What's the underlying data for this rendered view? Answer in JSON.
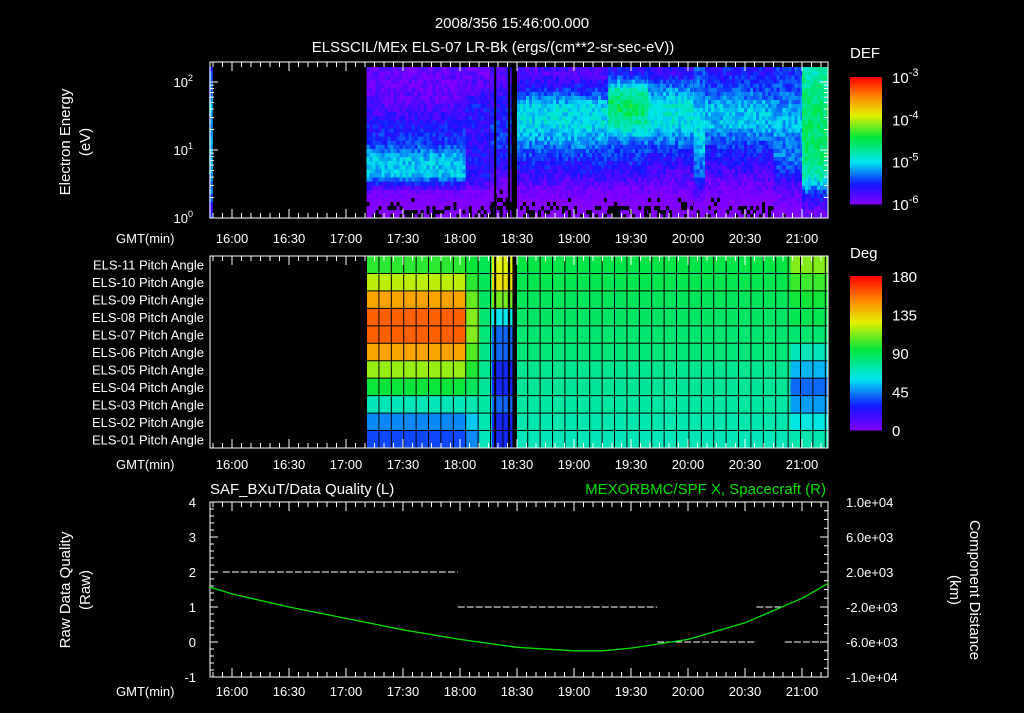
{
  "header": {
    "timestamp": "2008/356 15:46:00.000",
    "title": "ELSSCIL/MEx ELS-07 LR-Bk  (ergs/(cm**2-sr-sec-eV))"
  },
  "chart_data": [
    {
      "type": "heatmap",
      "name": "electron-spectrogram",
      "ylabel": "Electron Energy",
      "ylabel_units": "(eV)",
      "xlabel": "GMT(min)",
      "yscale": "log",
      "ylim": [
        1,
        145
      ],
      "ytick_labels": [
        {
          "base": "10",
          "exp": "0",
          "value": 1
        },
        {
          "base": "10",
          "exp": "1",
          "value": 10
        },
        {
          "base": "10",
          "exp": "2",
          "value": 100
        }
      ],
      "x_range_hours": [
        15.8,
        21.23
      ],
      "xtick_labels": [
        "16:00",
        "16:30",
        "17:00",
        "17:30",
        "18:00",
        "18:30",
        "19:00",
        "19:30",
        "20:00",
        "20:30",
        "21:00"
      ],
      "colorbar": {
        "title": "DEF",
        "scale": "log",
        "range_log10": [
          -6,
          -3
        ],
        "labels": [
          {
            "base": "10",
            "exp": "-3"
          },
          {
            "base": "10",
            "exp": "-4"
          },
          {
            "base": "10",
            "exp": "-5"
          },
          {
            "base": "10",
            "exp": "-6"
          }
        ]
      },
      "energy_bins_log10": [
        0.1,
        0.35,
        0.6,
        0.85,
        1.1,
        1.35,
        1.6,
        1.85,
        2.1
      ],
      "segments": [
        {
          "start": 15.8,
          "end": 15.83,
          "log10_def": [
            -5.6,
            -5.3,
            -5.2,
            -5.2,
            -5.2,
            -5.2,
            -5.2,
            -5.3,
            -5.5
          ]
        },
        {
          "start": 17.18,
          "end": 18.05,
          "log10_def": [
            -6.2,
            -6.0,
            -5.1,
            -5.1,
            -5.5,
            -5.6,
            -5.8,
            -5.9,
            -5.9
          ]
        },
        {
          "start": 18.05,
          "end": 18.27,
          "log10_def": [
            -6.2,
            -6.0,
            -5.6,
            -5.6,
            -5.7,
            -5.6,
            -5.6,
            -5.8,
            -5.9
          ]
        },
        {
          "start": 18.27,
          "end": 18.45,
          "log10_def": [
            -6.3,
            -6.1,
            -5.8,
            -5.6,
            -5.5,
            -5.5,
            -5.6,
            -5.7,
            -5.8
          ]
        },
        {
          "start": 18.5,
          "end": 19.3,
          "log10_def": [
            -6.2,
            -6.0,
            -5.7,
            -5.5,
            -5.2,
            -5.0,
            -5.0,
            -5.5,
            -5.8
          ]
        },
        {
          "start": 19.3,
          "end": 19.65,
          "log10_def": [
            -6.2,
            -6.0,
            -5.7,
            -5.5,
            -5.3,
            -4.8,
            -4.5,
            -4.8,
            -5.6
          ]
        },
        {
          "start": 19.65,
          "end": 20.05,
          "log10_def": [
            -6.2,
            -6.0,
            -5.8,
            -5.6,
            -5.3,
            -5.0,
            -4.9,
            -5.2,
            -5.7
          ]
        },
        {
          "start": 20.05,
          "end": 20.15,
          "log10_def": [
            -6.1,
            -5.8,
            -5.4,
            -5.2,
            -5.0,
            -5.0,
            -5.1,
            -5.3,
            -5.4
          ]
        },
        {
          "start": 20.15,
          "end": 20.75,
          "log10_def": [
            -6.2,
            -6.0,
            -5.8,
            -5.6,
            -5.4,
            -5.1,
            -5.1,
            -5.4,
            -5.6
          ]
        },
        {
          "start": 20.75,
          "end": 21.0,
          "log10_def": [
            -6.1,
            -5.9,
            -5.6,
            -5.3,
            -5.3,
            -5.1,
            -5.2,
            -5.4,
            -5.5
          ]
        },
        {
          "start": 21.0,
          "end": 21.23,
          "log10_def": [
            -5.9,
            -5.4,
            -4.8,
            -4.6,
            -4.6,
            -4.6,
            -4.6,
            -4.7,
            -4.8
          ]
        }
      ],
      "data_gaps": [
        [
          18.3,
          18.31
        ],
        [
          18.42,
          18.44
        ],
        [
          18.46,
          18.5
        ]
      ]
    },
    {
      "type": "heatmap",
      "name": "pitch-angle",
      "xlabel": "GMT(min)",
      "row_labels": [
        "ELS-11 Pitch Angle",
        "ELS-10 Pitch Angle",
        "ELS-09 Pitch Angle",
        "ELS-08 Pitch Angle",
        "ELS-07 Pitch Angle",
        "ELS-06 Pitch Angle",
        "ELS-05 Pitch Angle",
        "ELS-04 Pitch Angle",
        "ELS-03 Pitch Angle",
        "ELS-02 Pitch Angle",
        "ELS-01 Pitch Angle"
      ],
      "x_range_hours": [
        15.8,
        21.23
      ],
      "xtick_labels": [
        "16:00",
        "16:30",
        "17:00",
        "17:30",
        "18:00",
        "18:30",
        "19:00",
        "19:30",
        "20:00",
        "20:30",
        "21:00"
      ],
      "colorbar": {
        "title": "Deg",
        "range": [
          0,
          180
        ],
        "labels": [
          "180",
          "135",
          "90",
          "45",
          "0"
        ]
      },
      "segments": [
        {
          "start": 17.18,
          "end": 18.05,
          "deg": [
            100,
            120,
            145,
            160,
            160,
            145,
            115,
            95,
            70,
            45,
            35
          ]
        },
        {
          "start": 18.05,
          "end": 18.17,
          "deg": [
            95,
            100,
            108,
            112,
            112,
            105,
            98,
            88,
            72,
            55,
            45
          ]
        },
        {
          "start": 18.17,
          "end": 18.28,
          "deg": [
            90,
            88,
            86,
            84,
            82,
            80,
            78,
            76,
            74,
            72,
            70
          ]
        },
        {
          "start": 18.28,
          "end": 18.5,
          "deg": [
            125,
            130,
            110,
            60,
            40,
            40,
            30,
            30,
            40,
            30,
            30
          ]
        },
        {
          "start": 18.5,
          "end": 20.9,
          "deg": [
            92,
            90,
            88,
            86,
            84,
            82,
            78,
            76,
            74,
            72,
            70
          ]
        },
        {
          "start": 20.9,
          "end": 21.23,
          "deg": [
            112,
            102,
            96,
            90,
            84,
            70,
            52,
            40,
            48,
            62,
            72
          ]
        }
      ],
      "data_gaps": [
        [
          18.3,
          18.31
        ],
        [
          18.42,
          18.44
        ],
        [
          18.46,
          18.5
        ]
      ]
    },
    {
      "type": "line",
      "name": "quality-and-position",
      "left_title": "SAF_BXuT/Data Quality (L)",
      "right_title": "MEXORBMC/SPF X, Spacecraft (R)",
      "ylabel_left": "Raw Data Quality",
      "ylabel_left_units": "(Raw)",
      "ylabel_right": "Component Distance",
      "ylabel_right_units": "(km)",
      "xlabel": "GMT(min)",
      "ylim_left": [
        -1,
        4
      ],
      "ytick_labels_left": [
        "4",
        "3",
        "2",
        "1",
        "0",
        "-1"
      ],
      "ylim_right": [
        -10000,
        10000
      ],
      "ytick_labels_right": [
        "1.0e+04",
        "6.0e+03",
        "2.0e+03",
        "-2.0e+03",
        "-6.0e+03",
        "-1.0e+04"
      ],
      "x_range_hours": [
        15.8,
        21.23
      ],
      "xtick_labels": [
        "16:00",
        "16:30",
        "17:00",
        "17:30",
        "18:00",
        "18:30",
        "19:00",
        "19:30",
        "20:00",
        "20:30",
        "21:00"
      ],
      "series": [
        {
          "name": "Data Quality",
          "axis": "left",
          "color": "#ffffff",
          "style": "dashed",
          "segments": [
            [
              15.92,
              17.98,
              2
            ],
            [
              17.98,
              19.73,
              1
            ],
            [
              19.73,
              20.6,
              0
            ],
            [
              20.6,
              20.82,
              1
            ],
            [
              20.85,
              21.17,
              0
            ]
          ]
        },
        {
          "name": "SPF X, Spacecraft",
          "axis": "right",
          "color": "#00e000",
          "x": [
            15.8,
            16.0,
            16.5,
            17.0,
            17.5,
            18.0,
            18.5,
            19.0,
            19.25,
            19.5,
            20.0,
            20.5,
            21.0,
            21.23
          ],
          "y": [
            300,
            -500,
            -2000,
            -3300,
            -4600,
            -5700,
            -6600,
            -7000,
            -7000,
            -6700,
            -5700,
            -3800,
            -1000,
            700
          ]
        }
      ]
    }
  ]
}
